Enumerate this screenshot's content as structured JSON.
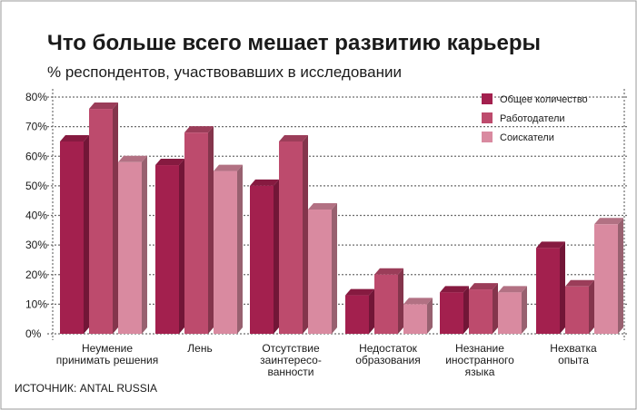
{
  "chart_data": {
    "type": "bar",
    "title": "Что больше всего мешает развитию карьеры",
    "subtitle": "% респондентов, участвовавших в исследовании",
    "categories": [
      [
        "Неумение",
        "принимать решения"
      ],
      [
        "Лень"
      ],
      [
        "Отсутствие",
        "заинтересо-",
        "ванности"
      ],
      [
        "Недостаток",
        "образования"
      ],
      [
        "Незнание",
        "иностранного",
        "языка"
      ],
      [
        "Нехватка",
        "опыта"
      ]
    ],
    "series": [
      {
        "name": "Общее количество",
        "color": "#a3204e",
        "values": [
          65,
          57,
          50,
          13,
          14,
          29
        ]
      },
      {
        "name": "Работодатели",
        "color": "#bd4b6d",
        "values": [
          76,
          68,
          65,
          20,
          15,
          16
        ]
      },
      {
        "name": "Соискатели",
        "color": "#d98aa0",
        "values": [
          58,
          55,
          42,
          10,
          14,
          37
        ]
      }
    ],
    "ylim": [
      0,
      80
    ],
    "yticks": [
      "0%",
      "10%",
      "20%",
      "30%",
      "40%",
      "50%",
      "60%",
      "70%",
      "80%"
    ],
    "grid": true,
    "legend_position": "top-right",
    "source": "ИСТОЧНИК: ANTAL RUSSIA"
  }
}
